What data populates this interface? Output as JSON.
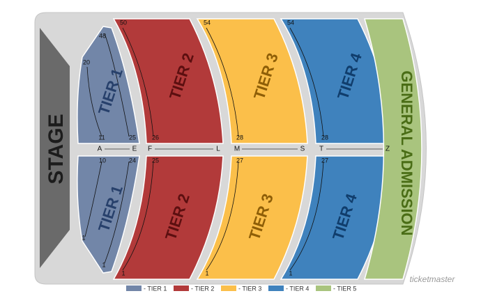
{
  "stage": "STAGE",
  "sections": [
    {
      "label": "TIER 1",
      "seats": [
        "48",
        "20",
        "11",
        "25"
      ]
    },
    {
      "label": "TIER 1",
      "seats": [
        "10",
        "24",
        "1",
        "1"
      ]
    },
    {
      "label": "TIER 2",
      "seats": [
        "50",
        "26"
      ]
    },
    {
      "label": "TIER 2",
      "seats": [
        "25",
        "1"
      ]
    },
    {
      "label": "TIER 3",
      "seats": [
        "54",
        "28"
      ]
    },
    {
      "label": "TIER 3",
      "seats": [
        "27",
        "1"
      ]
    },
    {
      "label": "TIER 4",
      "seats": [
        "54",
        "28"
      ]
    },
    {
      "label": "TIER 4",
      "seats": [
        "27",
        "1"
      ]
    }
  ],
  "general_admission": "GENERAL ADMISSION",
  "rows": [
    "A",
    "E",
    "F",
    "L",
    "M",
    "S",
    "T",
    "Z"
  ],
  "legend": [
    "- TIER 1",
    "- TIER 2",
    "- TIER 3",
    "- TIER 4",
    "- TIER 5"
  ],
  "brand": "ticketmaster"
}
